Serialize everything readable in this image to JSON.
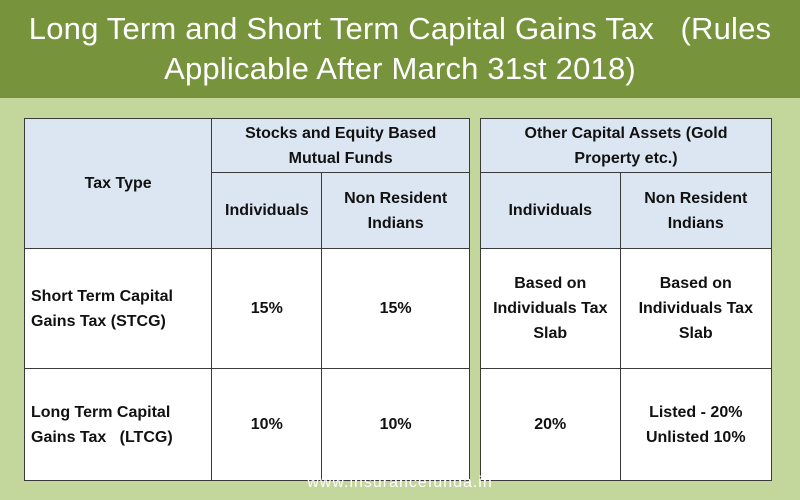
{
  "header": {
    "title_line1": "Long Term and Short Term Capital Gains Tax   (Rules",
    "title_line2": "Applicable After March 31st 2018)"
  },
  "table_left": {
    "tax_type_header": "Tax Type",
    "group_header": "Stocks and Equity Based Mutual Funds",
    "col_individuals": "Individuals",
    "col_nri": "Non Resident Indians",
    "rows": [
      {
        "label": "Short Term Capital Gains Tax (STCG)",
        "individuals": "15%",
        "nri": "15%"
      },
      {
        "label": "Long Term Capital Gains Tax   (LTCG)",
        "individuals": "10%",
        "nri": "10%"
      }
    ]
  },
  "table_right": {
    "group_header": "Other Capital Assets (Gold Property etc.)",
    "col_individuals": "Individuals",
    "col_nri": "Non Resident Indians",
    "rows": [
      {
        "individuals": "Based on Individuals Tax Slab",
        "nri": "Based on Individuals Tax Slab"
      },
      {
        "individuals": "20%",
        "nri_line1": "Listed - 20%",
        "nri_line2": "Unlisted 10%"
      }
    ]
  },
  "footer": {
    "site": "www.insurancefunda.in"
  },
  "colors": {
    "header_bg": "#77933c",
    "page_bg": "#c3d69b",
    "table_header_bg": "#dce6f2"
  }
}
